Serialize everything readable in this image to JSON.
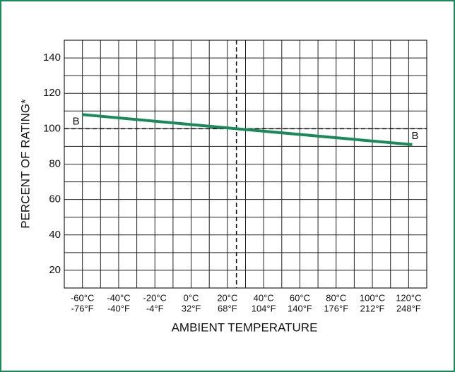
{
  "chart_data": {
    "type": "line",
    "xlabel": "AMBIENT TEMPERATURE",
    "ylabel": "PERCENT OF RATING*",
    "x": [
      -60,
      25,
      122
    ],
    "series": [
      {
        "name": "B",
        "color": "#1b8a5a",
        "values": [
          108,
          100,
          91
        ]
      }
    ],
    "annotations": [
      "B",
      "B"
    ],
    "xlim": [
      -70,
      130
    ],
    "ylim": [
      10,
      150
    ],
    "xticks": [
      {
        "value": -60,
        "label": [
          "-60°C",
          "-76°F"
        ]
      },
      {
        "value": -40,
        "label": [
          "-40°C",
          "-40°F"
        ]
      },
      {
        "value": -20,
        "label": [
          "-20°C",
          "-4°F"
        ]
      },
      {
        "value": 0,
        "label": [
          "0°C",
          "32°F"
        ]
      },
      {
        "value": 20,
        "label": [
          "20°C",
          "68°F"
        ]
      },
      {
        "value": 40,
        "label": [
          "40°C",
          "104°F"
        ]
      },
      {
        "value": 60,
        "label": [
          "60°C",
          "140°F"
        ]
      },
      {
        "value": 80,
        "label": [
          "80°C",
          "176°F"
        ]
      },
      {
        "value": 100,
        "label": [
          "100°C",
          "212°F"
        ]
      },
      {
        "value": 120,
        "label": [
          "120°C",
          "248°F"
        ]
      }
    ],
    "yticks": [
      20,
      40,
      60,
      80,
      100,
      120,
      140
    ],
    "reference_lines": {
      "x": 25,
      "y": 100
    },
    "grid": true
  }
}
